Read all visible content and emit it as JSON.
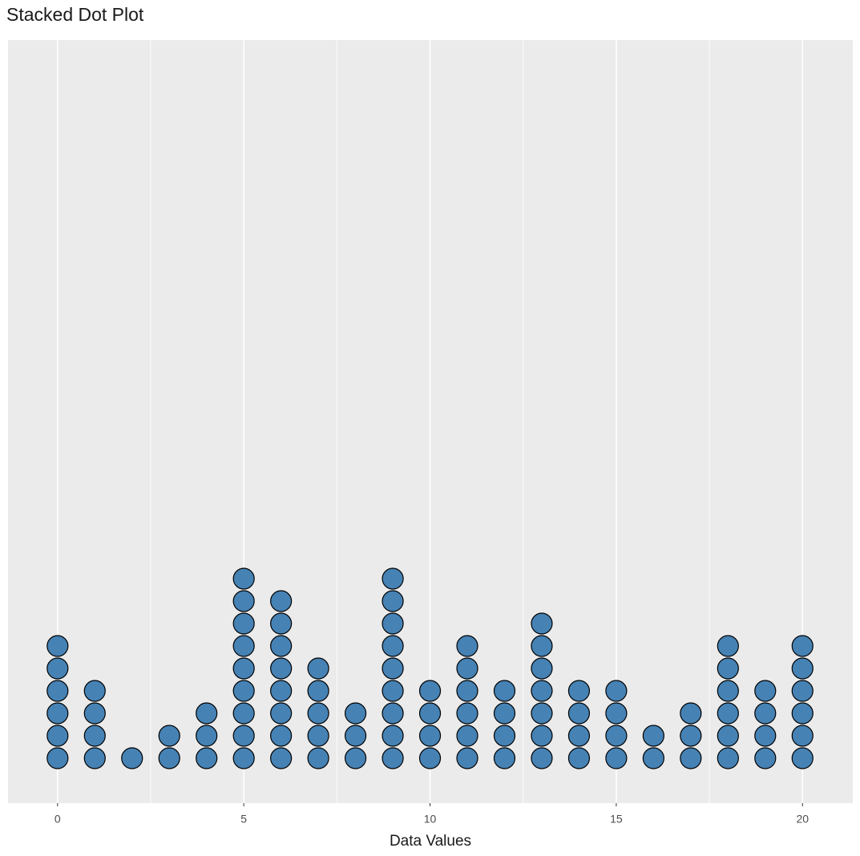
{
  "chart_data": {
    "type": "dotplot",
    "title": "Stacked Dot Plot",
    "x_label": "Data Values",
    "x": [
      0,
      1,
      2,
      3,
      4,
      5,
      6,
      7,
      8,
      9,
      10,
      11,
      12,
      13,
      14,
      15,
      16,
      17,
      18,
      19,
      20
    ],
    "counts": [
      6,
      4,
      1,
      2,
      3,
      9,
      8,
      5,
      3,
      9,
      4,
      6,
      4,
      7,
      4,
      4,
      2,
      3,
      6,
      4,
      6
    ],
    "color": "#4682b4",
    "xlim": [
      -1.33,
      21.35
    ],
    "xticks": [
      0,
      5,
      10,
      15,
      20
    ],
    "x_minor_ticks": [
      2.5,
      7.5,
      12.5,
      17.5
    ],
    "grid": true
  }
}
